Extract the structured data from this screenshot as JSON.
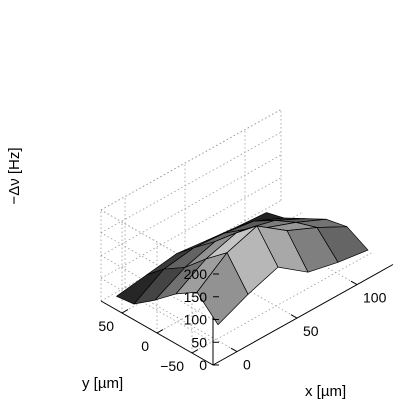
{
  "chart_data": {
    "type": "surface",
    "title": "",
    "xlabel": "x [µm]",
    "ylabel": "y [µm]",
    "zlabel": "−Δν [Hz]",
    "x_ticks": [
      {
        "value": 0,
        "label": "0"
      },
      {
        "value": 50,
        "label": "50"
      },
      {
        "value": 100,
        "label": "100"
      }
    ],
    "y_ticks": [
      {
        "value": 50,
        "label": "50"
      },
      {
        "value": 0,
        "label": "0"
      },
      {
        "value": -50,
        "label": "−50"
      }
    ],
    "z_ticks": [
      {
        "value": 0,
        "label": "0"
      },
      {
        "value": 50,
        "label": "50"
      },
      {
        "value": 100,
        "label": "100"
      },
      {
        "value": 150,
        "label": "150"
      },
      {
        "value": 200,
        "label": "200"
      }
    ],
    "xlim": [
      -20,
      130
    ],
    "ylim": [
      -80,
      80
    ],
    "zlim": [
      0,
      200
    ],
    "grid": true,
    "colormap": "gray",
    "x": [
      -10,
      15,
      40,
      65,
      90,
      115
    ],
    "y": [
      -70,
      -40,
      -10,
      20,
      50,
      75
    ],
    "z": [
      [
        65,
        110,
        80,
        40,
        5,
        0
      ],
      [
        95,
        160,
        120,
        75,
        45,
        10
      ],
      [
        118,
        182,
        140,
        95,
        55,
        20
      ],
      [
        70,
        135,
        115,
        85,
        50,
        12
      ],
      [
        55,
        105,
        90,
        68,
        40,
        5
      ],
      [
        45,
        70,
        60,
        35,
        10,
        0
      ]
    ]
  }
}
